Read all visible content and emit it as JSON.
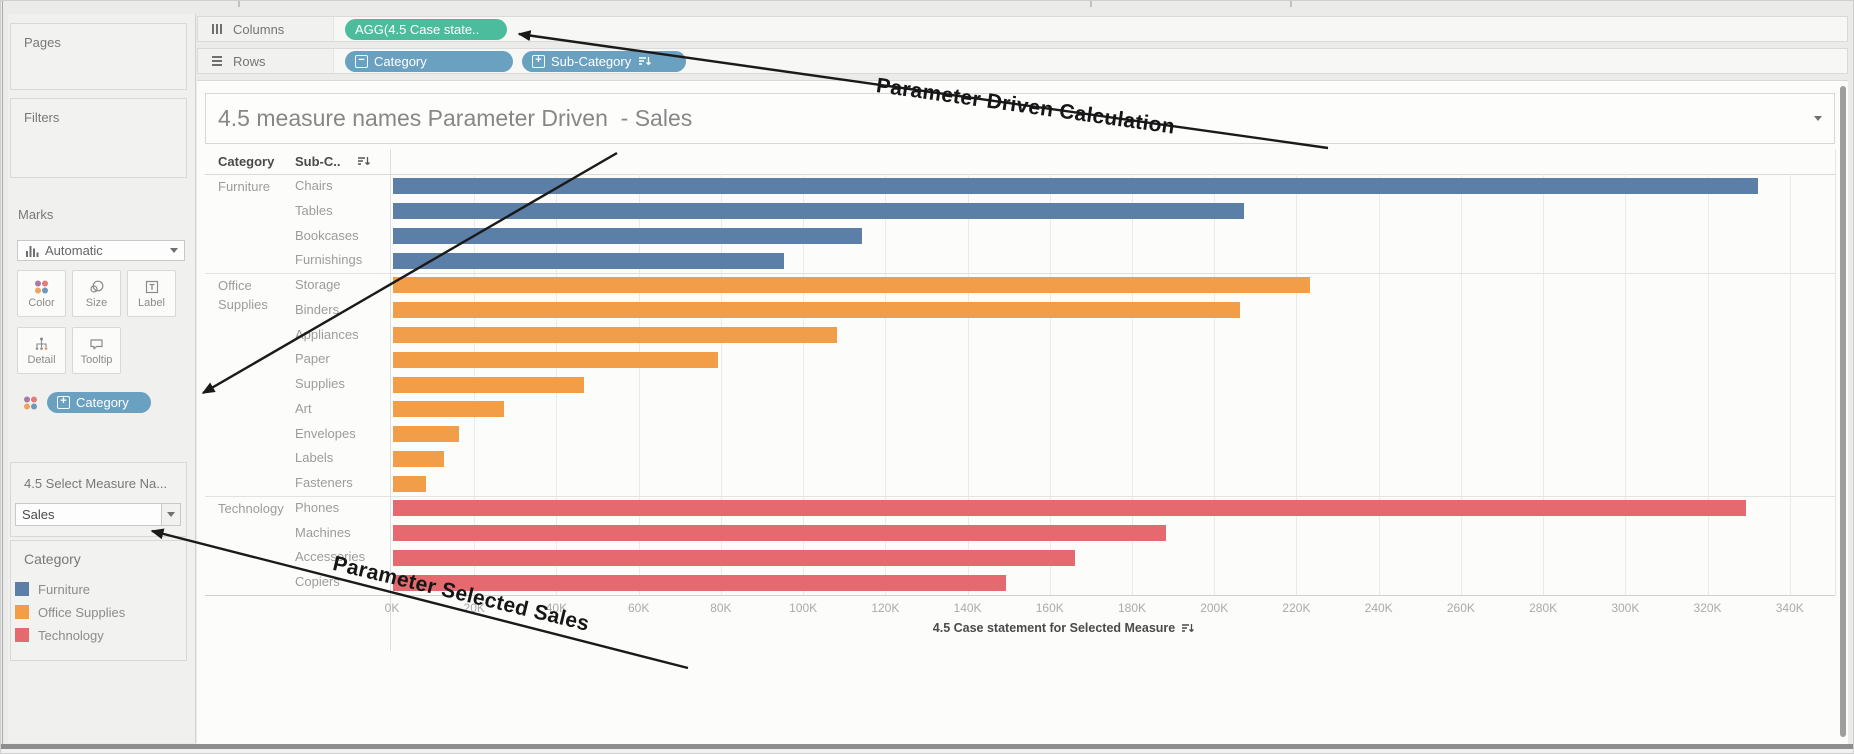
{
  "annotations": {
    "top": "Parameter Driven Calculation",
    "bottom": "Parameter Selected Sales"
  },
  "sidebar": {
    "pages": {
      "label": "Pages"
    },
    "filters": {
      "label": "Filters"
    },
    "marks": {
      "label": "Marks",
      "mark_type": "Automatic",
      "buttons": [
        {
          "label": "Color"
        },
        {
          "label": "Size"
        },
        {
          "label": "Label"
        },
        {
          "label": "Detail"
        },
        {
          "label": "Tooltip"
        }
      ],
      "pill": {
        "label": "Category",
        "color": "#6aa0c0"
      }
    },
    "parameter": {
      "title": "4.5 Select Measure Na...",
      "value": "Sales"
    },
    "legend": {
      "title": "Category",
      "items": [
        {
          "label": "Furniture",
          "color": "#5b7fa6"
        },
        {
          "label": "Office Supplies",
          "color": "#f29e49"
        },
        {
          "label": "Technology",
          "color": "#e5696e"
        }
      ]
    }
  },
  "shelves": {
    "columns": {
      "label": "Columns",
      "pill": {
        "label": "AGG(4.5 Case state..",
        "color": "#4cbd9c"
      }
    },
    "rows": {
      "label": "Rows",
      "pill_color": "#6aa0c0",
      "pills": [
        {
          "label": "Category"
        },
        {
          "label": "Sub-Category"
        }
      ]
    }
  },
  "sheet": {
    "title": "4.5 measure names Parameter Driven  - Sales"
  },
  "chart_data": {
    "type": "bar",
    "orientation": "horizontal",
    "col_headers": [
      "Category",
      "Sub-C.."
    ],
    "x_axis": {
      "tick_step_k": 20,
      "tick_max_k": 340,
      "scale_max_k": 351,
      "unit_suffix": "K",
      "caption": "4.5 Case statement for Selected Measure",
      "grid": true
    },
    "categories": [
      {
        "name": "Furniture",
        "color": "#5b7fa6",
        "items": [
          {
            "label": "Chairs",
            "value_k": 332
          },
          {
            "label": "Tables",
            "value_k": 207
          },
          {
            "label": "Bookcases",
            "value_k": 114
          },
          {
            "label": "Furnishings",
            "value_k": 95
          }
        ]
      },
      {
        "name": "Office Supplies",
        "color": "#f29e49",
        "items": [
          {
            "label": "Storage",
            "value_k": 223
          },
          {
            "label": "Binders",
            "value_k": 206
          },
          {
            "label": "Appliances",
            "value_k": 108
          },
          {
            "label": "Paper",
            "value_k": 79
          },
          {
            "label": "Supplies",
            "value_k": 46.5
          },
          {
            "label": "Art",
            "value_k": 27
          },
          {
            "label": "Envelopes",
            "value_k": 16
          },
          {
            "label": "Labels",
            "value_k": 12.5
          },
          {
            "label": "Fasteners",
            "value_k": 8
          }
        ]
      },
      {
        "name": "Technology",
        "color": "#e5696e",
        "items": [
          {
            "label": "Phones",
            "value_k": 329
          },
          {
            "label": "Machines",
            "value_k": 188
          },
          {
            "label": "Accessories",
            "value_k": 166
          },
          {
            "label": "Copiers",
            "value_k": 149
          }
        ]
      }
    ]
  }
}
